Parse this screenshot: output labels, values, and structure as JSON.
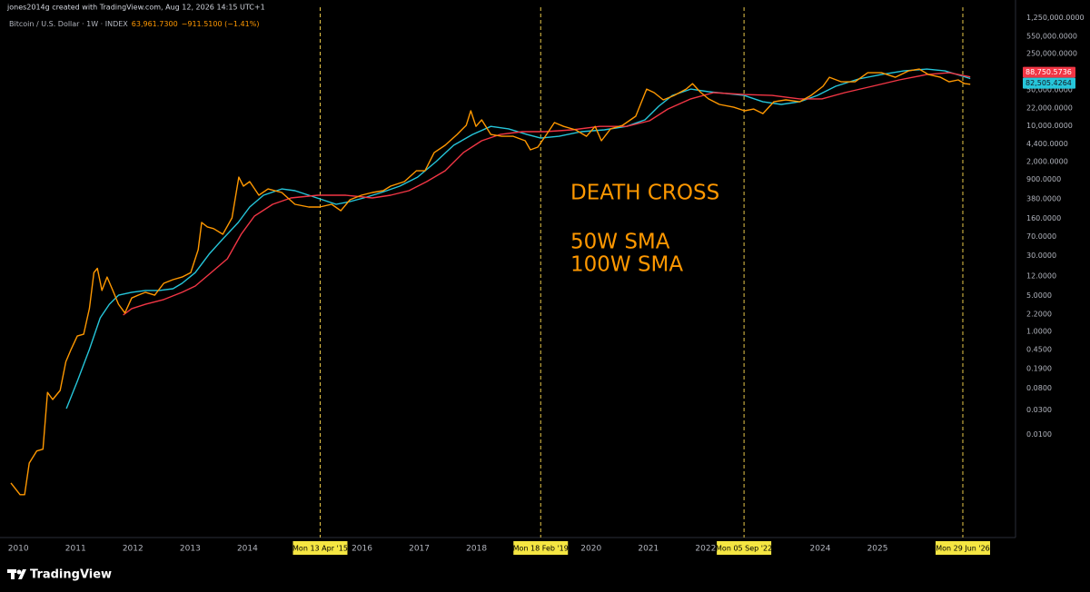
{
  "header": {
    "author_line": "jones2014g created with TradingView.com, Aug 12, 2026 14:15 UTC+1"
  },
  "footer": {
    "brand": "TradingView"
  },
  "chart_data": {
    "type": "line",
    "symbol": "Bitcoin / U.S. Dollar · 1W · INDEX",
    "legend_price": {
      "value": 63961.73,
      "label": "63,961.7300"
    },
    "legend_change": "−911.5100 (−1.41%)",
    "annotations": [
      "DEATH CROSS",
      "50W SMA",
      "100W SMA"
    ],
    "log_scale": true,
    "grid": false,
    "xlim": [
      2009.68,
      2027.41
    ],
    "xticks": [
      2010,
      2011,
      2012,
      2013,
      2014,
      2016,
      2017,
      2018,
      2020,
      2021,
      2022,
      2024,
      2025
    ],
    "ylim": [
      0.0001,
      2000000
    ],
    "yticks": [
      {
        "value": 0.01,
        "label": "0.0100"
      },
      {
        "value": 0.03,
        "label": "0.0300"
      },
      {
        "value": 0.08,
        "label": "0.0800"
      },
      {
        "value": 0.19,
        "label": "0.1900"
      },
      {
        "value": 0.45,
        "label": "0.4500"
      },
      {
        "value": 1,
        "label": "1.0000"
      },
      {
        "value": 2.2,
        "label": "2.2000"
      },
      {
        "value": 5,
        "label": "5.0000"
      },
      {
        "value": 12,
        "label": "12.0000"
      },
      {
        "value": 30,
        "label": "30.0000"
      },
      {
        "value": 70,
        "label": "70.0000"
      },
      {
        "value": 160,
        "label": "160.0000"
      },
      {
        "value": 380,
        "label": "380.0000"
      },
      {
        "value": 900,
        "label": "900.0000"
      },
      {
        "value": 2000,
        "label": "2,000.0000"
      },
      {
        "value": 4400,
        "label": "4,400.0000"
      },
      {
        "value": 10000,
        "label": "10,000.0000"
      },
      {
        "value": 22000,
        "label": "22,000.0000"
      },
      {
        "value": 50000,
        "label": "50,000.0000"
      },
      {
        "value": 250000,
        "label": "250,000.0000"
      },
      {
        "value": 550000,
        "label": "550,000.0000"
      },
      {
        "value": 1250000,
        "label": "1,250,000.0000"
      }
    ],
    "markers": [
      {
        "x": 2015.27,
        "label": "Mon 13 Apr '15"
      },
      {
        "x": 2019.12,
        "label": "Mon 18 Feb '19"
      },
      {
        "x": 2022.67,
        "label": "Mon 05 Sep '22"
      },
      {
        "x": 2026.49,
        "label": "Mon 29 Jun '26"
      }
    ],
    "series": [
      {
        "color": "#ff9800",
        "x": [
          2009.87,
          2010.03,
          2010.11,
          2010.19,
          2010.32,
          2010.43,
          2010.51,
          2010.6,
          2010.73,
          2010.83,
          2010.92,
          2011.03,
          2011.14,
          2011.24,
          2011.32,
          2011.38,
          2011.46,
          2011.55,
          2011.65,
          2011.75,
          2011.86,
          2011.98,
          2012.09,
          2012.22,
          2012.38,
          2012.54,
          2012.7,
          2012.86,
          2013.01,
          2013.14,
          2013.2,
          2013.3,
          2013.41,
          2013.57,
          2013.73,
          2013.85,
          2013.93,
          2014.04,
          2014.2,
          2014.36,
          2014.6,
          2014.83,
          2015.07,
          2015.26,
          2015.47,
          2015.63,
          2015.79,
          2015.99,
          2016.18,
          2016.37,
          2016.5,
          2016.74,
          2016.95,
          2017.1,
          2017.26,
          2017.45,
          2017.66,
          2017.82,
          2017.9,
          2017.99,
          2018.09,
          2018.25,
          2018.44,
          2018.64,
          2018.85,
          2018.94,
          2019.07,
          2019.2,
          2019.36,
          2019.52,
          2019.73,
          2019.92,
          2020.07,
          2020.18,
          2020.34,
          2020.55,
          2020.78,
          2020.97,
          2021.1,
          2021.26,
          2021.45,
          2021.66,
          2021.77,
          2021.9,
          2022.05,
          2022.24,
          2022.49,
          2022.68,
          2022.84,
          2023.0,
          2023.19,
          2023.4,
          2023.64,
          2023.84,
          2024.05,
          2024.16,
          2024.37,
          2024.61,
          2024.83,
          2025.07,
          2025.31,
          2025.54,
          2025.73,
          2025.89,
          2026.1,
          2026.25,
          2026.41,
          2026.52,
          2026.62
        ],
        "values": [
          0.00115,
          0.00068,
          0.00068,
          0.0028,
          0.0048,
          0.0052,
          0.066,
          0.048,
          0.072,
          0.26,
          0.45,
          0.82,
          0.89,
          2.8,
          14,
          17,
          6.3,
          11.5,
          6.3,
          3.4,
          2.3,
          4.5,
          5.1,
          5.8,
          5.1,
          8.7,
          10.2,
          11.5,
          14,
          39,
          132,
          108,
          100,
          78,
          162,
          1000,
          670,
          820,
          446,
          590,
          504,
          297,
          263,
          263,
          297,
          223,
          364,
          446,
          504,
          546,
          670,
          820,
          1334,
          1334,
          3000,
          4160,
          6770,
          10200,
          19500,
          9700,
          13000,
          6770,
          6240,
          6240,
          5100,
          3400,
          3840,
          6240,
          11500,
          9700,
          8300,
          6240,
          9700,
          5100,
          8700,
          10200,
          15300,
          51600,
          43900,
          31700,
          38800,
          51600,
          65800,
          45800,
          33200,
          25900,
          22900,
          19500,
          21100,
          17200,
          29200,
          31700,
          29200,
          38800,
          58300,
          87400,
          71400,
          71400,
          107000,
          107000,
          87400,
          116000,
          126000,
          98800,
          87400,
          71400,
          77500,
          65800,
          63961.73
        ]
      },
      {
        "color": "#26c6da",
        "last_value": {
          "value": 82505.4264,
          "label": "82,505.4264"
        },
        "x": [
          2010.84,
          2011.03,
          2011.24,
          2011.43,
          2011.59,
          2011.75,
          2011.98,
          2012.22,
          2012.46,
          2012.7,
          2012.86,
          2013.09,
          2013.33,
          2013.57,
          2013.84,
          2014.04,
          2014.28,
          2014.6,
          2014.83,
          2015.07,
          2015.31,
          2015.55,
          2015.79,
          2016.03,
          2016.34,
          2016.66,
          2016.97,
          2017.29,
          2017.6,
          2017.93,
          2018.25,
          2018.56,
          2018.88,
          2019.12,
          2019.44,
          2019.83,
          2020.23,
          2020.62,
          2020.94,
          2021.18,
          2021.42,
          2021.74,
          2022.05,
          2022.37,
          2022.67,
          2023.0,
          2023.32,
          2023.64,
          2023.95,
          2024.27,
          2024.67,
          2025.07,
          2025.46,
          2025.86,
          2026.18,
          2026.62
        ],
        "values": [
          0.032,
          0.108,
          0.45,
          1.85,
          3.4,
          5.1,
          5.8,
          6.3,
          6.3,
          6.8,
          8.7,
          14,
          32,
          63,
          132,
          263,
          446,
          590,
          546,
          446,
          364,
          297,
          336,
          395,
          504,
          670,
          1000,
          2000,
          4160,
          6770,
          9700,
          8700,
          6770,
          5750,
          6240,
          7650,
          8300,
          9700,
          13000,
          23900,
          38800,
          51600,
          45800,
          42100,
          38800,
          29200,
          25900,
          29200,
          38800,
          58300,
          80700,
          98800,
          116000,
          126000,
          116000,
          82505.4264
        ]
      },
      {
        "color": "#f23645",
        "last_value": {
          "value": 88750.5736,
          "label": "88,750.5736"
        },
        "x": [
          2011.83,
          2011.98,
          2012.22,
          2012.54,
          2012.86,
          2013.09,
          2013.33,
          2013.65,
          2013.89,
          2014.12,
          2014.44,
          2014.76,
          2015.23,
          2015.71,
          2016.18,
          2016.5,
          2016.82,
          2017.13,
          2017.45,
          2017.77,
          2018.09,
          2018.41,
          2018.8,
          2019.2,
          2019.67,
          2020.15,
          2020.62,
          2021.02,
          2021.34,
          2021.74,
          2022.14,
          2022.67,
          2023.16,
          2023.64,
          2024.03,
          2024.43,
          2024.91,
          2025.38,
          2025.86,
          2026.25,
          2026.62
        ],
        "values": [
          2.1,
          2.8,
          3.4,
          4.2,
          5.8,
          7.7,
          13,
          26,
          78,
          175,
          297,
          395,
          446,
          446,
          395,
          446,
          546,
          820,
          1334,
          3000,
          5100,
          6770,
          7650,
          7650,
          8300,
          9700,
          9700,
          12500,
          21100,
          33200,
          43900,
          40400,
          38800,
          33200,
          33200,
          43900,
          58300,
          77500,
          98800,
          107000,
          88750.5736
        ]
      }
    ]
  }
}
